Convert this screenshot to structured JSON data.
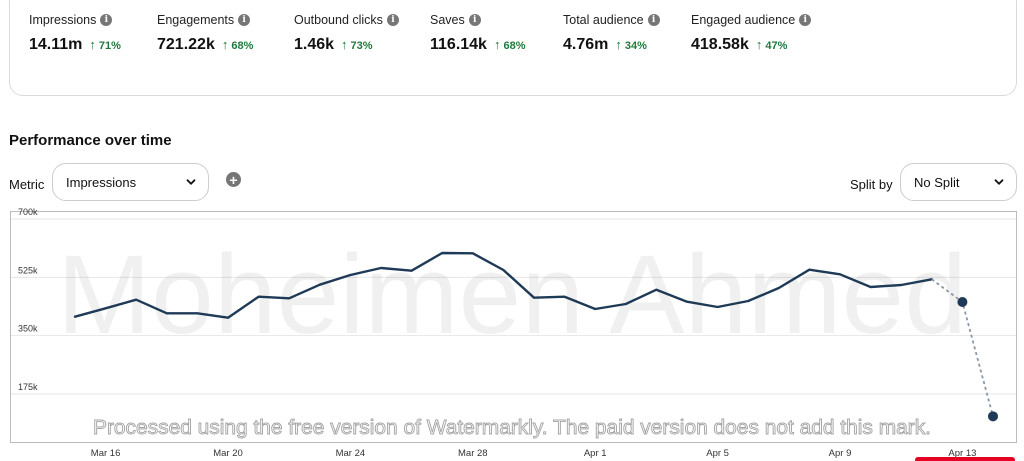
{
  "metrics": [
    {
      "label": "Impressions",
      "value": "14.11m",
      "change": "71%"
    },
    {
      "label": "Engagements",
      "value": "721.22k",
      "change": "68%"
    },
    {
      "label": "Outbound clicks",
      "value": "1.46k",
      "change": "73%"
    },
    {
      "label": "Saves",
      "value": "116.14k",
      "change": "68%"
    },
    {
      "label": "Total audience",
      "value": "4.76m",
      "change": "34%"
    },
    {
      "label": "Engaged audience",
      "value": "418.58k",
      "change": "47%"
    }
  ],
  "icons": {
    "info": "info-icon",
    "change": "arrow-up-icon",
    "select": "chevron-down-icon",
    "add": "plus-icon"
  },
  "colors": {
    "positive": "#1e7a3c",
    "line": "#1f3a56",
    "projected": "#8a96a8",
    "grid": "#e6e6e6"
  },
  "section": {
    "title": "Performance over time"
  },
  "controls": {
    "metric_label": "Metric",
    "metric_value": "Impressions",
    "split_label": "Split by",
    "split_value": "No Split"
  },
  "watermark": {
    "name": "Moheimen Ahmed",
    "note": "Processed using the free version of Watermarkly. The paid version does not add this mark."
  },
  "chart_data": {
    "type": "line",
    "ylim": [
      70000,
      700000
    ],
    "yticks": [
      {
        "value": 175000,
        "label": "175k"
      },
      {
        "value": 350000,
        "label": "350k"
      },
      {
        "value": 525000,
        "label": "525k"
      },
      {
        "value": 700000,
        "label": "700k"
      }
    ],
    "xticks": [
      "Mar 16",
      "Mar 20",
      "Mar 24",
      "Mar 28",
      "Apr 1",
      "Apr 5",
      "Apr 9",
      "Apr 13"
    ],
    "x_start": "Mar 15",
    "x_step_days": 1,
    "grid": true,
    "series": [
      {
        "style": "solid",
        "values": [
          407000,
          432000,
          458000,
          417000,
          417000,
          404000,
          467000,
          462000,
          503000,
          532000,
          553000,
          545000,
          598000,
          597000,
          547000,
          464000,
          467000,
          430000,
          445000,
          488000,
          452000,
          436000,
          454000,
          493000,
          548000,
          534000,
          496000,
          502000,
          519000
        ]
      },
      {
        "style": "dashed",
        "start_index": 28,
        "values": [
          519000,
          451000,
          108000
        ]
      }
    ]
  }
}
